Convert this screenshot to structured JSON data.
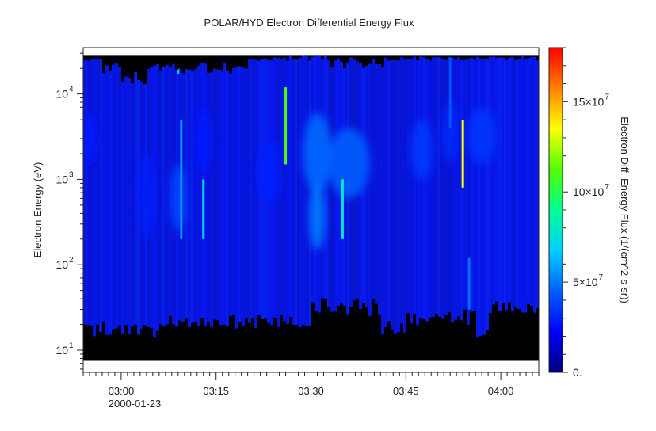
{
  "chart_data": {
    "type": "heatmap",
    "title": "POLAR/HYD  Electron Differential Energy Flux",
    "ylabel": "Electron Energy (eV)",
    "colorbar_label": "Electron Diff. Energy Flux (1/(cm^2-s-sr))",
    "x_range": [
      "02:54",
      "04:06"
    ],
    "x_ticks": [
      {
        "time": "03:00",
        "label": "03:00"
      },
      {
        "time": "03:15",
        "label": "03:15"
      },
      {
        "time": "03:30",
        "label": "03:30"
      },
      {
        "time": "03:45",
        "label": "03:45"
      },
      {
        "time": "04:00",
        "label": "04:00"
      }
    ],
    "x_date_label": "2000-01-23",
    "y_scale": "log",
    "y_range_ev": [
      5.5,
      35000
    ],
    "y_ticks": [
      {
        "value": 10,
        "label": "10",
        "exp": "1"
      },
      {
        "value": 100,
        "label": "10",
        "exp": "2"
      },
      {
        "value": 1000,
        "label": "10",
        "exp": "3"
      },
      {
        "value": 10000,
        "label": "10",
        "exp": "4"
      }
    ],
    "data_energy_range_ev": [
      7.5,
      28000
    ],
    "colorbar": {
      "range": [
        0,
        180000000
      ],
      "ticks": [
        {
          "value": 0,
          "label": "0."
        },
        {
          "value": 50000000,
          "label": "5×10",
          "exp": "7"
        },
        {
          "value": 100000000,
          "label": "10×10",
          "exp": "7"
        },
        {
          "value": 150000000,
          "label": "15×10",
          "exp": "7"
        }
      ],
      "colors": [
        "#00007a",
        "#0000ff",
        "#0060ff",
        "#00d0ff",
        "#00ff90",
        "#50ff00",
        "#ffff00",
        "#ff8000",
        "#ff0000"
      ]
    },
    "blobs": [
      {
        "t0": "02:54",
        "t1": "02:56",
        "e0": 1500,
        "e1": 6000,
        "flux": 28000000
      },
      {
        "t0": "03:03",
        "t1": "03:05",
        "e0": 200,
        "e1": 2000,
        "flux": 30000000
      },
      {
        "t0": "03:08",
        "t1": "03:10",
        "e0": 250,
        "e1": 1500,
        "flux": 40000000
      },
      {
        "t0": "03:12",
        "t1": "03:14",
        "e0": 1200,
        "e1": 7000,
        "flux": 28000000
      },
      {
        "t0": "03:22",
        "t1": "03:25",
        "e0": 500,
        "e1": 3000,
        "flux": 30000000
      },
      {
        "t0": "03:29",
        "t1": "03:33",
        "e0": 700,
        "e1": 6000,
        "flux": 48000000
      },
      {
        "t0": "03:30",
        "t1": "03:32",
        "e0": 150,
        "e1": 900,
        "flux": 52000000
      },
      {
        "t0": "03:33",
        "t1": "03:39",
        "e0": 600,
        "e1": 4000,
        "flux": 45000000
      },
      {
        "t0": "03:46",
        "t1": "03:49",
        "e0": 1000,
        "e1": 5000,
        "flux": 36000000
      },
      {
        "t0": "03:51",
        "t1": "03:53",
        "e0": 1500,
        "e1": 8000,
        "flux": 32000000
      },
      {
        "t0": "03:55",
        "t1": "03:59",
        "e0": 1500,
        "e1": 7000,
        "flux": 35000000
      }
    ],
    "spikes": [
      {
        "time": "03:09",
        "e0": 17000,
        "e1": 28000,
        "flux": 65000000
      },
      {
        "time": "03:09:30",
        "e0": 200,
        "e1": 5000,
        "flux": 55000000
      },
      {
        "time": "03:13",
        "e0": 200,
        "e1": 1000,
        "flux": 70000000
      },
      {
        "time": "03:26",
        "e0": 1500,
        "e1": 12000,
        "flux": 110000000
      },
      {
        "time": "03:35",
        "e0": 200,
        "e1": 1000,
        "flux": 80000000
      },
      {
        "time": "03:52",
        "e0": 4000,
        "e1": 28000,
        "flux": 42000000
      },
      {
        "time": "03:54",
        "e0": 800,
        "e1": 5000,
        "flux": 135000000
      },
      {
        "time": "03:55",
        "e0": 30,
        "e1": 120,
        "flux": 48000000
      }
    ]
  }
}
